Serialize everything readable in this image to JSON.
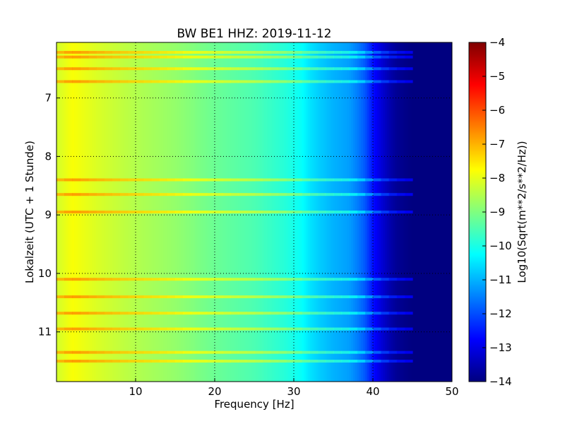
{
  "chart_data": {
    "type": "heatmap",
    "title": "BW BE1 HHZ: 2019-11-12",
    "xlabel": "Frequency [Hz]",
    "ylabel": "Lokalzeit (UTC + 1 Stunde)",
    "xlim": [
      0,
      50
    ],
    "ylim": [
      6.05,
      11.85
    ],
    "x_ticks": [
      10,
      20,
      30,
      40,
      50
    ],
    "y_ticks": [
      7,
      8,
      9,
      10,
      11
    ],
    "grid": true,
    "colormap": "jet",
    "colorbar": {
      "label": "Log10(Sqrt(m**2/s**2/Hz))",
      "range": [
        -14,
        -4
      ],
      "ticks": [
        -4,
        -5,
        -6,
        -7,
        -8,
        -9,
        -10,
        -11,
        -12,
        -13,
        -14
      ]
    },
    "spectral_profile": {
      "frequency_hz": [
        0,
        2,
        5,
        10,
        15,
        20,
        25,
        29,
        31,
        32,
        33,
        35,
        37,
        38,
        39,
        40,
        41,
        42,
        43,
        45,
        50
      ],
      "log10_amplitude": [
        -8.2,
        -7.8,
        -8.1,
        -8.5,
        -8.8,
        -9.2,
        -9.5,
        -9.9,
        -10.2,
        -10.5,
        -10.7,
        -11.0,
        -11.2,
        -11.5,
        -11.9,
        -12.6,
        -13.1,
        -13.5,
        -13.8,
        -14.0,
        -14.0
      ]
    },
    "bright_bands_hours": [
      6.22,
      6.3,
      6.5,
      6.72,
      8.4,
      8.65,
      8.95,
      10.1,
      10.4,
      10.68,
      10.95,
      11.35,
      11.5
    ]
  }
}
